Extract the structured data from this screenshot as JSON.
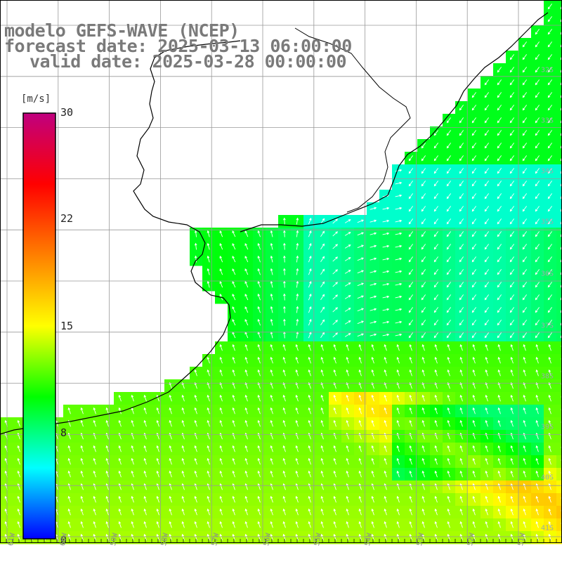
{
  "title": {
    "model": "modelo GEFS-WAVE (NCEP)",
    "forecast": "forecast date: 2025-03-13 06:00:00",
    "valid": "valid date: 2025-03-28 00:00:00"
  },
  "colorbar": {
    "unit": "[m/s]",
    "min": 0,
    "max": 30,
    "ticks": [
      {
        "value": 30,
        "label": "30"
      },
      {
        "value": 22,
        "label": "22"
      },
      {
        "value": 15,
        "label": "15"
      },
      {
        "value": 8,
        "label": "8"
      },
      {
        "value": 0,
        "label": "0"
      }
    ],
    "colors": [
      "#0000ff",
      "#00ffff",
      "#00ff00",
      "#ffff00",
      "#ff7f00",
      "#ff0000",
      "#c0007f"
    ]
  },
  "map": {
    "latitude_labels": [
      "32S",
      "33S",
      "34S",
      "35S",
      "36S",
      "37S",
      "38S",
      "39S",
      "40S",
      "41S"
    ],
    "longitude_labels": [
      "61W",
      "60W",
      "59W",
      "58W",
      "57W",
      "56W",
      "55W",
      "54W",
      "53W",
      "52W",
      "51W"
    ],
    "land_color": "#ffffff",
    "grid_color": "#999999",
    "coast_color": "#000000"
  }
}
